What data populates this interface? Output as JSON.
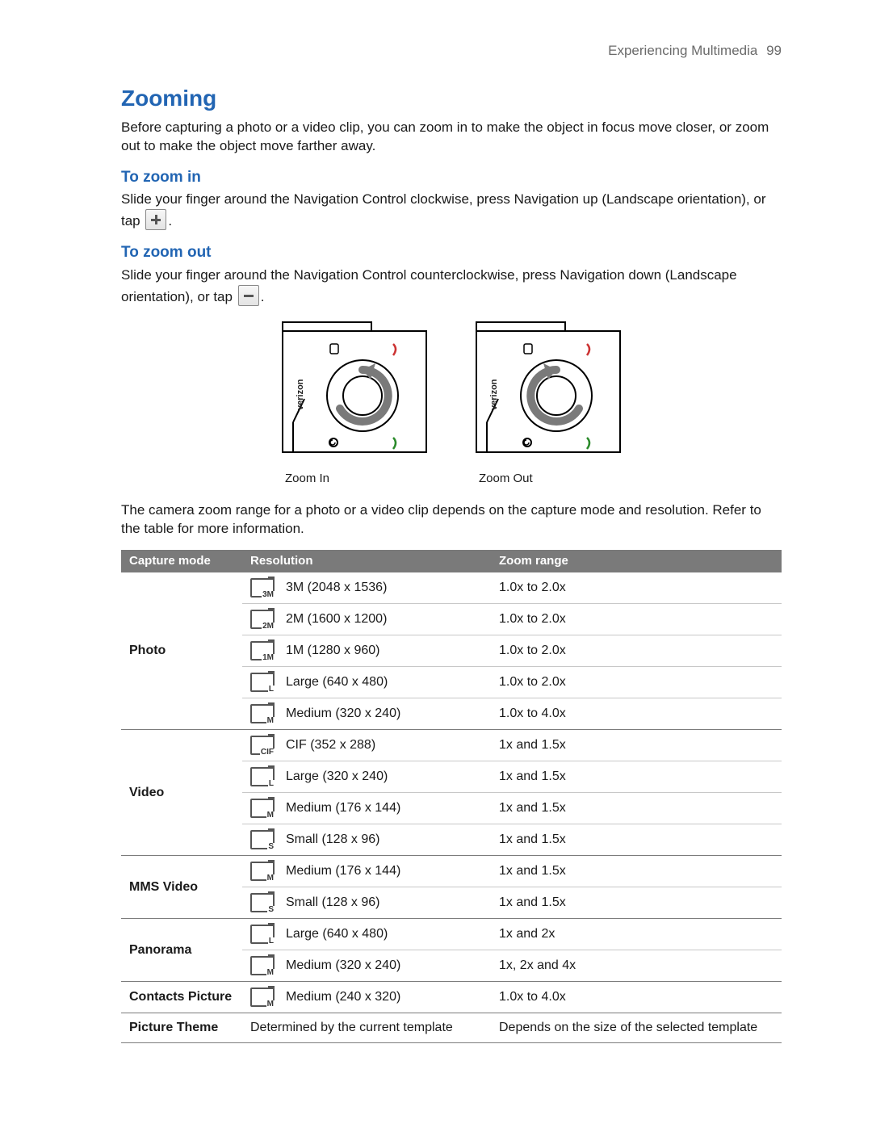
{
  "pageHeader": {
    "chapter": "Experiencing Multimedia",
    "pageNumber": "99"
  },
  "section": {
    "title": "Zooming",
    "intro": "Before capturing a photo or a video clip, you can zoom in to make the object in focus move closer, or zoom out to make the object move farther away."
  },
  "zoomIn": {
    "heading": "To zoom in",
    "pre": "Slide your finger around the Navigation Control clockwise, press Navigation up (Landscape orientation), or tap",
    "post": "."
  },
  "zoomOut": {
    "heading": "To zoom out",
    "pre": "Slide your finger around the Navigation Control counterclockwise, press Navigation down (Landscape orientation), or tap",
    "post": "."
  },
  "diagrams": {
    "left": "Zoom In",
    "right": "Zoom Out"
  },
  "afterDiagram": "The camera zoom range for a photo or a video clip depends on the capture mode and resolution. Refer to the table for more information.",
  "table": {
    "headers": {
      "mode": "Capture mode",
      "resolution": "Resolution",
      "range": "Zoom range"
    },
    "groups": [
      {
        "mode": "Photo",
        "rows": [
          {
            "tag": "3M",
            "label": "3M (2048 x 1536)",
            "range": "1.0x to 2.0x"
          },
          {
            "tag": "2M",
            "label": "2M (1600 x 1200)",
            "range": "1.0x to 2.0x"
          },
          {
            "tag": "1M",
            "label": "1M (1280 x 960)",
            "range": "1.0x to 2.0x"
          },
          {
            "tag": "L",
            "label": "Large (640 x 480)",
            "range": "1.0x to 2.0x"
          },
          {
            "tag": "M",
            "label": "Medium (320 x 240)",
            "range": "1.0x to 4.0x"
          }
        ]
      },
      {
        "mode": "Video",
        "rows": [
          {
            "tag": "CIF",
            "label": "CIF (352 x 288)",
            "range": "1x and 1.5x"
          },
          {
            "tag": "L",
            "label": "Large (320 x 240)",
            "range": "1x and 1.5x"
          },
          {
            "tag": "M",
            "label": "Medium (176 x 144)",
            "range": "1x and 1.5x"
          },
          {
            "tag": "S",
            "label": "Small (128 x 96)",
            "range": "1x and 1.5x"
          }
        ]
      },
      {
        "mode": "MMS Video",
        "rows": [
          {
            "tag": "M",
            "label": "Medium (176 x 144)",
            "range": "1x and 1.5x"
          },
          {
            "tag": "S",
            "label": "Small (128 x 96)",
            "range": "1x and 1.5x"
          }
        ]
      },
      {
        "mode": "Panorama",
        "rows": [
          {
            "tag": "L",
            "label": "Large (640 x 480)",
            "range": "1x and 2x"
          },
          {
            "tag": "M",
            "label": "Medium (320 x 240)",
            "range": "1x, 2x and 4x"
          }
        ]
      },
      {
        "mode": "Contacts Picture",
        "rows": [
          {
            "tag": "M",
            "label": "Medium (240 x 320)",
            "range": "1.0x to 4.0x"
          }
        ]
      },
      {
        "mode": "Picture Theme",
        "plainRow": {
          "label": "Determined by the current template",
          "range": "Depends on the size of the selected template"
        }
      }
    ]
  },
  "colors": {
    "headingBlue": "#2265b3",
    "tableHeaderBg": "#7a7a7a",
    "groupDivider": "#7c7c7c",
    "innerDivider": "#c8c8c8"
  }
}
